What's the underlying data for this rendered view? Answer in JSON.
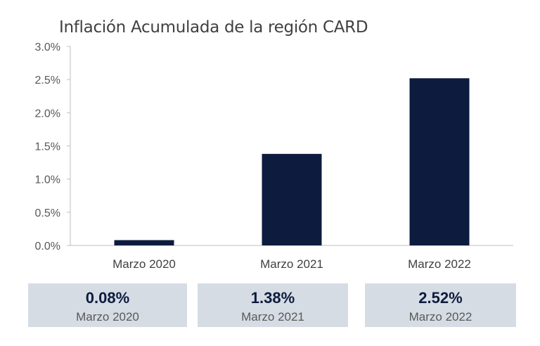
{
  "chart_data": {
    "type": "bar",
    "title": "Inflación Acumulada de la región CARD",
    "categories": [
      "Marzo 2020",
      "Marzo 2021",
      "Marzo 2022"
    ],
    "values": [
      0.08,
      1.38,
      2.52
    ],
    "unit": "%",
    "ylim": [
      0,
      3.0
    ],
    "yticks": [
      "0.0%",
      "0.5%",
      "1.0%",
      "1.5%",
      "2.0%",
      "2.5%",
      "3.0%"
    ],
    "xlabel": "",
    "ylabel": "",
    "grid": false,
    "bar_color": "#0d1b3e"
  },
  "summary": [
    {
      "value": "0.08%",
      "label": "Marzo 2020"
    },
    {
      "value": "1.38%",
      "label": "Marzo 2021"
    },
    {
      "value": "2.52%",
      "label": "Marzo 2022"
    }
  ]
}
